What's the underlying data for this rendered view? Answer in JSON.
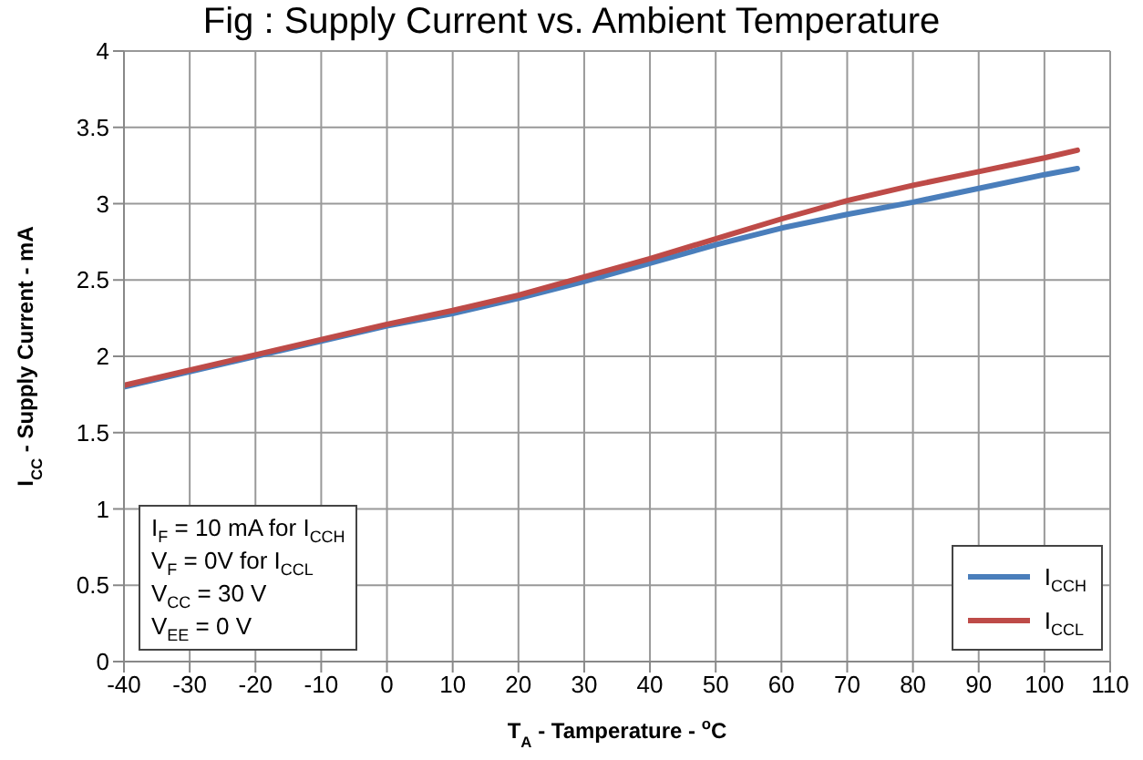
{
  "chart_data": {
    "type": "line",
    "title": "Fig : Supply Current vs. Ambient Temperature",
    "xlabel": "T$_{A}$ - Tamperature - $^{o}$C",
    "ylabel": "I$_{CC}$ - Supply Current - mA",
    "x": [
      -40,
      -30,
      -20,
      -10,
      0,
      10,
      20,
      30,
      40,
      50,
      60,
      70,
      80,
      90,
      100,
      105
    ],
    "series": [
      {
        "name": "I$_{CCH}$",
        "color": "#4a7ebb",
        "values": [
          1.8,
          1.9,
          2.0,
          2.1,
          2.2,
          2.28,
          2.38,
          2.49,
          2.61,
          2.73,
          2.84,
          2.93,
          3.01,
          3.1,
          3.19,
          3.23
        ]
      },
      {
        "name": "I$_{CCL}$",
        "color": "#be4b48",
        "values": [
          1.81,
          1.91,
          2.01,
          2.11,
          2.21,
          2.3,
          2.4,
          2.52,
          2.64,
          2.77,
          2.9,
          3.02,
          3.12,
          3.21,
          3.3,
          3.35
        ]
      }
    ],
    "xlim": [
      -40,
      110
    ],
    "xticks": [
      -40,
      -30,
      -20,
      -10,
      0,
      10,
      20,
      30,
      40,
      50,
      60,
      70,
      80,
      90,
      100,
      110
    ],
    "ylim": [
      0,
      4
    ],
    "yticks": [
      0,
      0.5,
      1,
      1.5,
      2,
      2.5,
      3,
      3.5,
      4
    ],
    "annotations": [
      "I$_{F}$ = 10 mA for I$_{CCH}$",
      "V$_{F}$ = 0V for I$_{CCL}$",
      "V$_{CC}$ = 30 V",
      "V$_{EE}$ = 0 V"
    ],
    "grid": true,
    "legend": "bottom right",
    "marker": "none",
    "line_style": "solid"
  }
}
